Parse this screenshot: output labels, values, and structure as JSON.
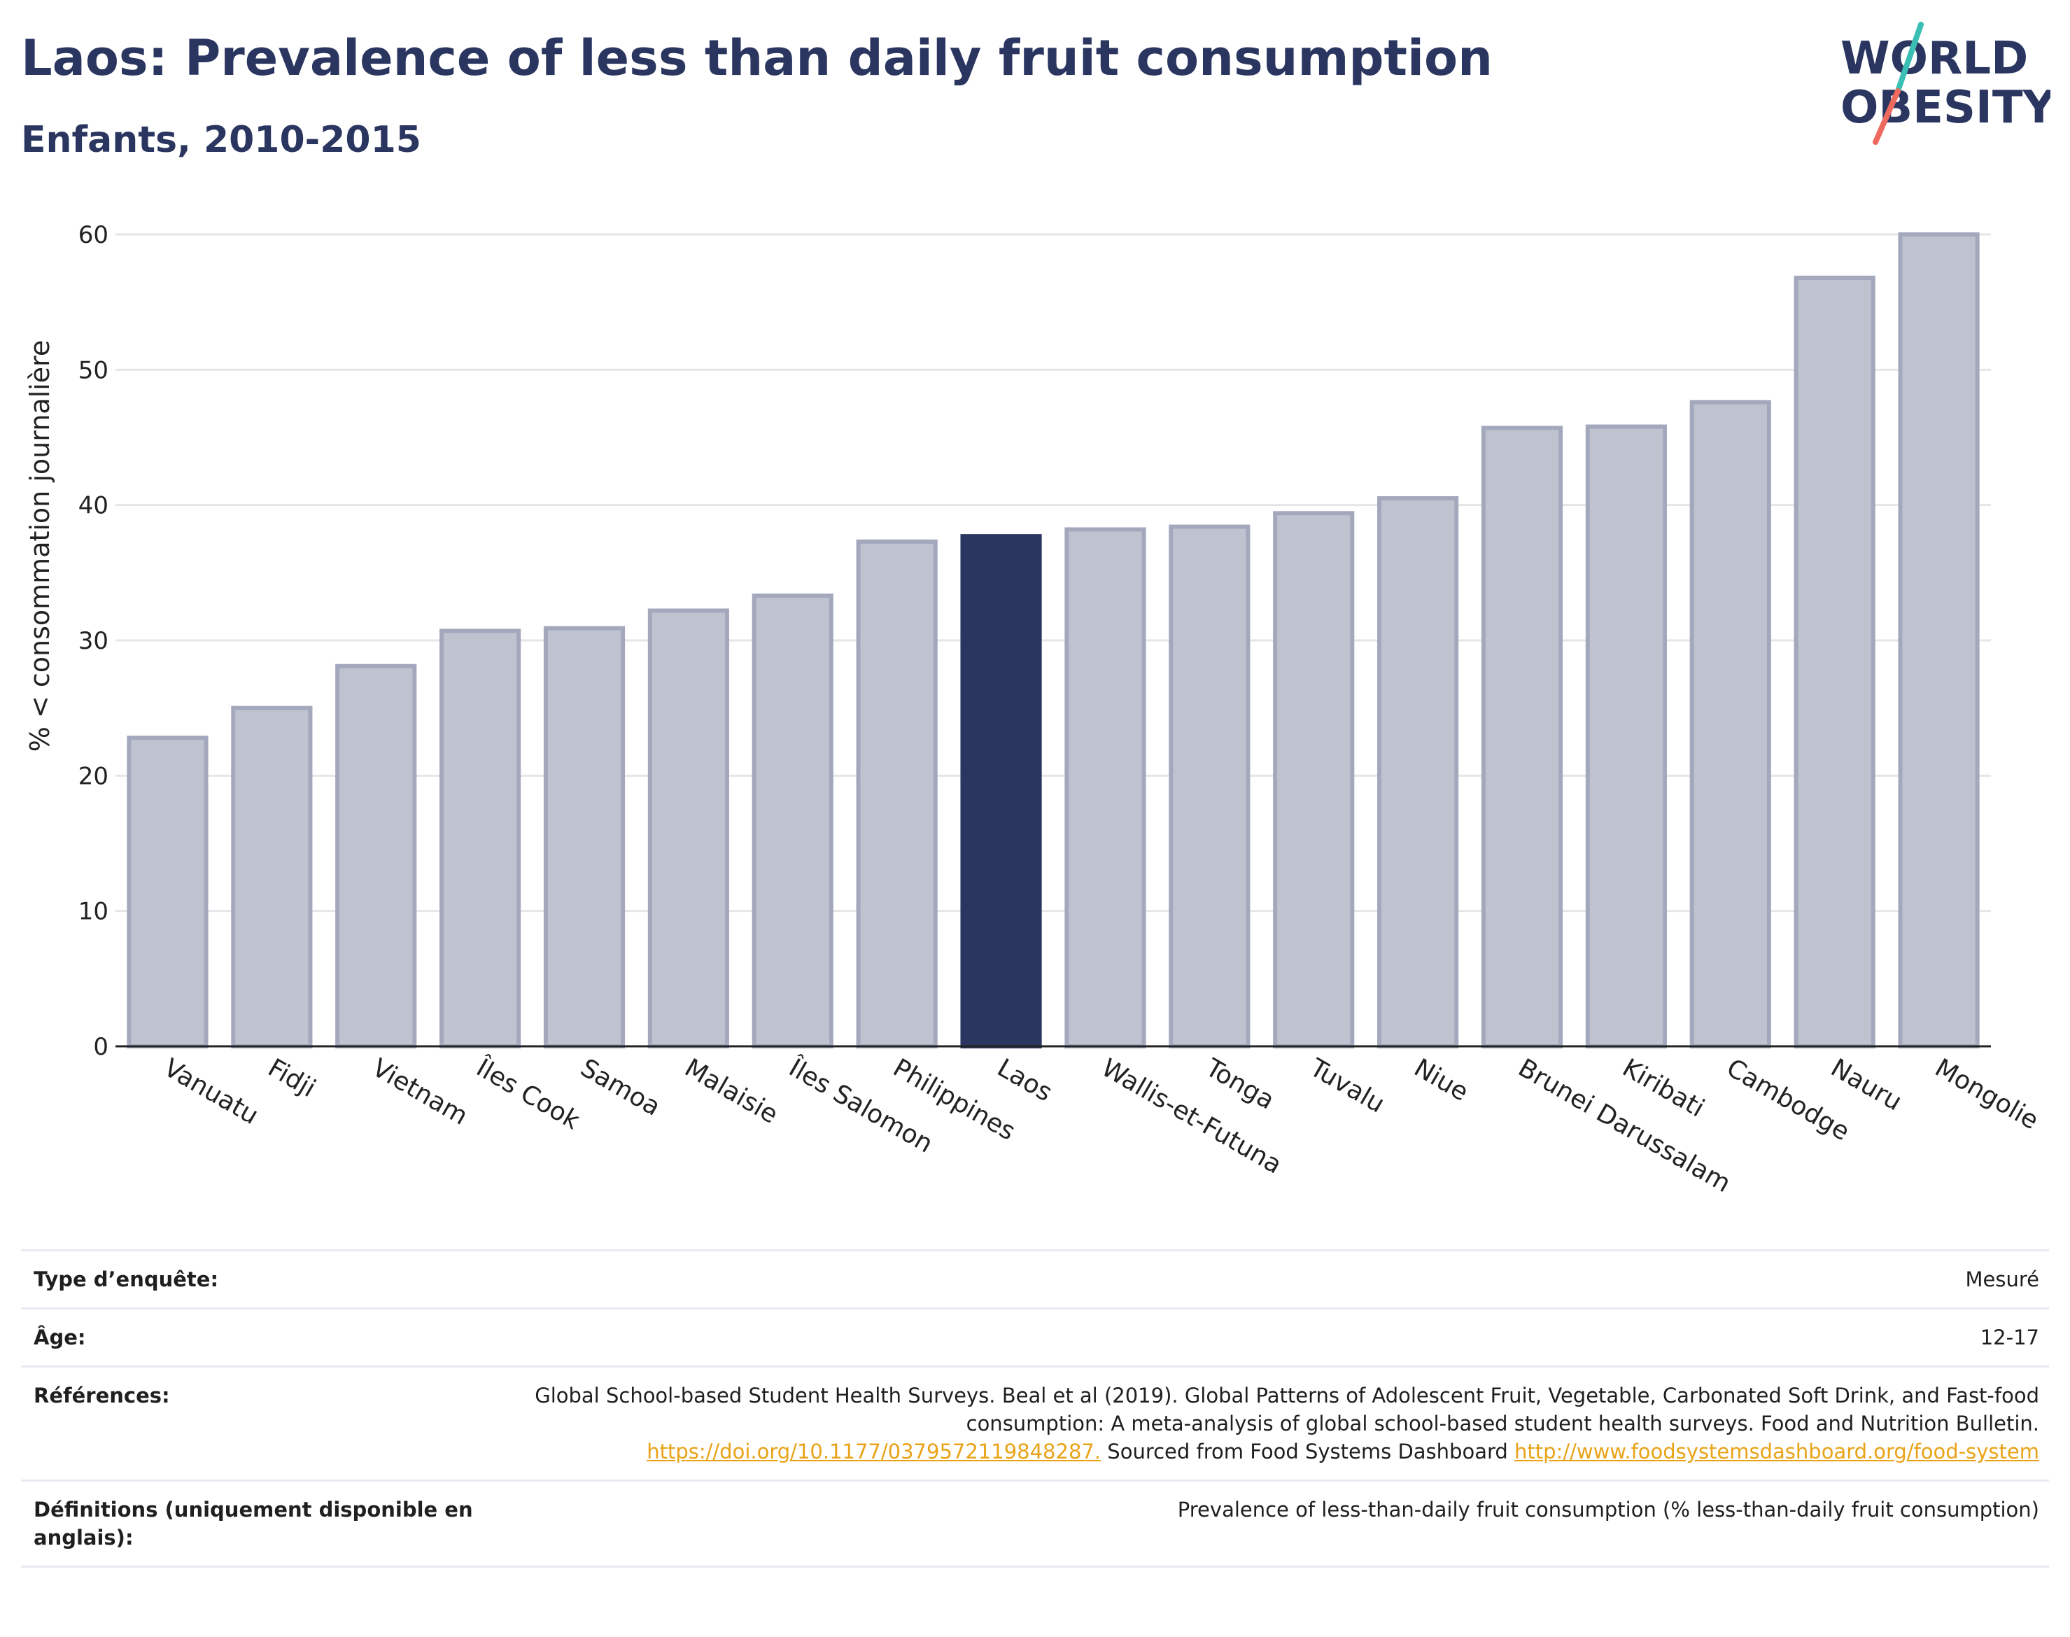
{
  "header": {
    "title": "Laos: Prevalence of less than daily fruit consumption",
    "subtitle": "Enfants, 2010-2015"
  },
  "logo": {
    "line1": "WORLD",
    "line2": "OBESITY",
    "text_color": "#2a3560",
    "slash_colors": [
      "#3bbfb4",
      "#ee6a5e"
    ]
  },
  "colors": {
    "highlight_bar": "#2a3560",
    "other_bar_fill": "#bfc3d0",
    "other_bar_stroke": "#a3a8bd",
    "grid": "#e6e6ea",
    "axis": "#222222"
  },
  "chart_data": {
    "type": "bar",
    "title": "Laos: Prevalence of less than daily fruit consumption",
    "subtitle": "Enfants, 2010-2015",
    "ylabel": "% < consommation journalière",
    "xlabel": "",
    "ylim": [
      0,
      60
    ],
    "yticks": [
      0,
      10,
      20,
      30,
      40,
      50,
      60
    ],
    "grid": true,
    "highlight": "Laos",
    "categories": [
      "Vanuatu",
      "Fidji",
      "Vietnam",
      "Îles Cook",
      "Samoa",
      "Malaisie",
      "Îles Salomon",
      "Philippines",
      "Laos",
      "Wallis-et-Futuna",
      "Tonga",
      "Tuvalu",
      "Niue",
      "Brunei Darussalam",
      "Kiribati",
      "Cambodge",
      "Nauru",
      "Mongolie"
    ],
    "values": [
      22.8,
      25.0,
      28.1,
      30.7,
      30.9,
      32.2,
      33.3,
      37.3,
      37.7,
      38.2,
      38.4,
      39.4,
      40.5,
      45.7,
      45.8,
      47.6,
      56.8,
      60.0
    ]
  },
  "metadata": {
    "survey_type_label": "Type d’enquête:",
    "survey_type_value": "Mesuré",
    "age_label": "Âge:",
    "age_value": "12-17",
    "references_label": "Références:",
    "references_text1": "Global School-based Student Health Surveys. Beal et al (2019). Global Patterns of Adolescent Fruit, Vegetable, Carbonated Soft Drink, and Fast-food consumption: A meta-analysis of global school-based student health surveys. Food and Nutrition Bulletin. ",
    "references_link1": "https://doi.org/10.1177/0379572119848287.",
    "references_text2": " Sourced from Food Systems Dashboard ",
    "references_link2": "http://www.foodsystemsdashboard.org/food-system",
    "definitions_label": "Définitions (uniquement disponible en anglais):",
    "definitions_value": "Prevalence of less-than-daily fruit consumption (% less-than-daily fruit consumption)"
  }
}
